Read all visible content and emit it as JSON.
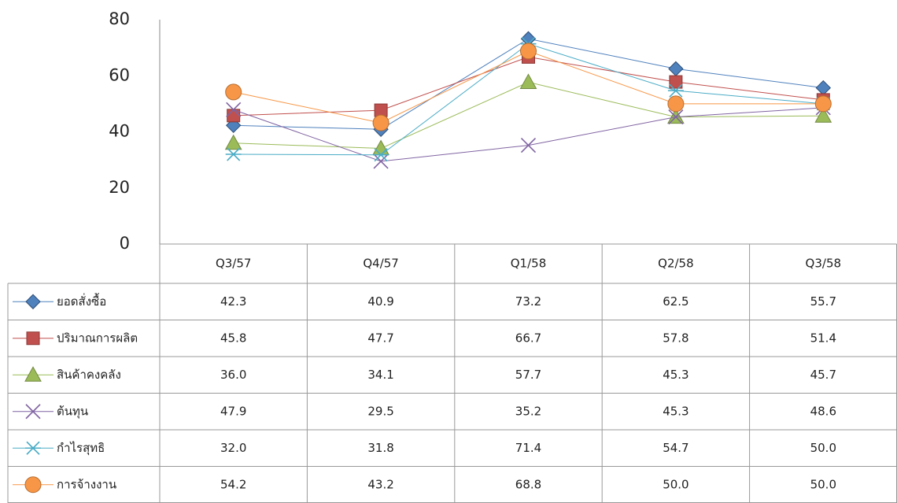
{
  "chart_data": {
    "type": "line",
    "categories": [
      "Q3/57",
      "Q4/57",
      "Q1/58",
      "Q2/58",
      "Q3/58"
    ],
    "series": [
      {
        "name": "ยอดสั่งซื้อ",
        "color": "#4f81bd",
        "marker": "diamond",
        "values": [
          42.3,
          40.9,
          73.2,
          62.5,
          55.7
        ],
        "value_labels": [
          "42.3",
          "40.9",
          "73.2",
          "62.5",
          "55.7"
        ]
      },
      {
        "name": "ปริมาณการผลิต",
        "color": "#c0504d",
        "marker": "square",
        "values": [
          45.8,
          47.7,
          66.7,
          57.8,
          51.4
        ],
        "value_labels": [
          "45.8",
          "47.7",
          "66.7",
          "57.8",
          "51.4"
        ]
      },
      {
        "name": "สินค้าคงคลัง",
        "color": "#9bbb59",
        "marker": "triangle",
        "values": [
          36.0,
          34.1,
          57.7,
          45.3,
          45.7
        ],
        "value_labels": [
          "36.0",
          "34.1",
          "57.7",
          "45.3",
          "45.7"
        ]
      },
      {
        "name": "ต้นทุน",
        "color": "#8064a2",
        "marker": "x",
        "values": [
          47.9,
          29.5,
          35.2,
          45.3,
          48.6
        ],
        "value_labels": [
          "47.9",
          "29.5",
          "35.2",
          "45.3",
          "48.6"
        ]
      },
      {
        "name": "กำไรสุทธิ",
        "color": "#4bacc6",
        "marker": "star",
        "values": [
          32.0,
          31.8,
          71.4,
          54.7,
          50.0
        ],
        "value_labels": [
          "32.0",
          "31.8",
          "71.4",
          "54.7",
          "50.0"
        ]
      },
      {
        "name": "การจ้างงาน",
        "color": "#f79646",
        "marker": "circle",
        "values": [
          54.2,
          43.2,
          68.8,
          50.0,
          50.0
        ],
        "value_labels": [
          "54.2",
          "43.2",
          "68.8",
          "50.0",
          "50.0"
        ]
      }
    ],
    "ylim": [
      0,
      80
    ],
    "yticks": [
      0,
      20,
      40,
      60,
      80
    ],
    "grid": false
  }
}
